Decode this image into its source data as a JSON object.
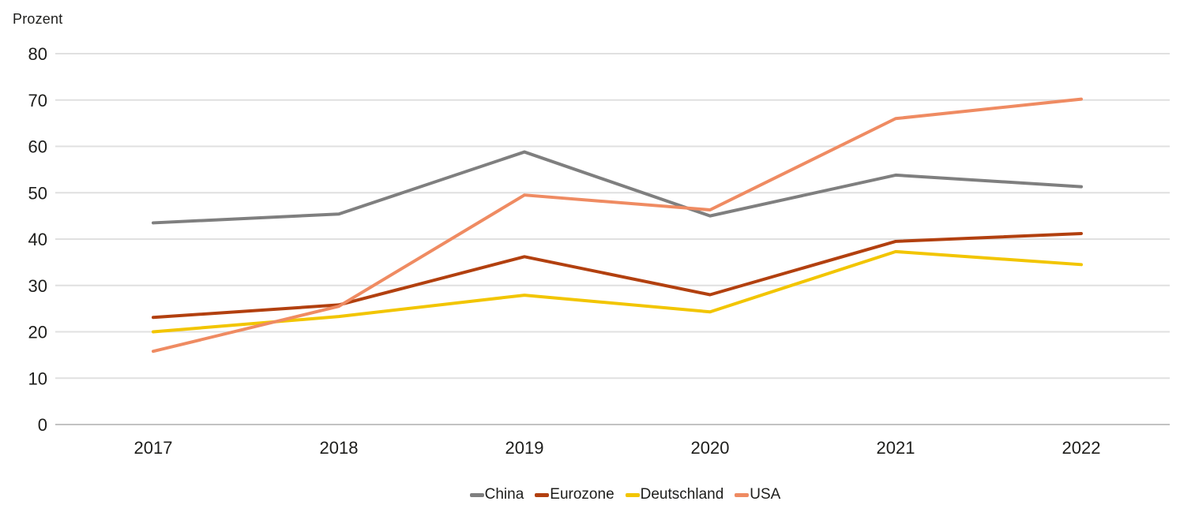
{
  "chart_data": {
    "type": "line",
    "unit_label": "Prozent",
    "categories": [
      "2017",
      "2018",
      "2019",
      "2020",
      "2021",
      "2022"
    ],
    "series": [
      {
        "name": "China",
        "color": "#7f7f7f",
        "values": [
          43.5,
          45.4,
          58.8,
          45.0,
          53.8,
          51.3
        ]
      },
      {
        "name": "Eurozone",
        "color": "#b2400f",
        "values": [
          23.1,
          25.8,
          36.2,
          28.0,
          39.5,
          41.2
        ]
      },
      {
        "name": "Deutschland",
        "color": "#f2c500",
        "values": [
          20.0,
          23.3,
          27.9,
          24.3,
          37.3,
          34.5
        ]
      },
      {
        "name": "USA",
        "color": "#ef8b62",
        "values": [
          15.8,
          25.5,
          49.5,
          46.3,
          66.0,
          70.2
        ]
      }
    ],
    "ylim": [
      0,
      80
    ],
    "yticks": [
      "0",
      "10",
      "20",
      "30",
      "40",
      "50",
      "60",
      "70",
      "80"
    ],
    "grid": "horizontal",
    "legend_position": "bottom",
    "colors": {
      "gridline": "#e0e0e0",
      "zero_line": "#c3c3c3",
      "text": "#1d1d1b"
    }
  }
}
